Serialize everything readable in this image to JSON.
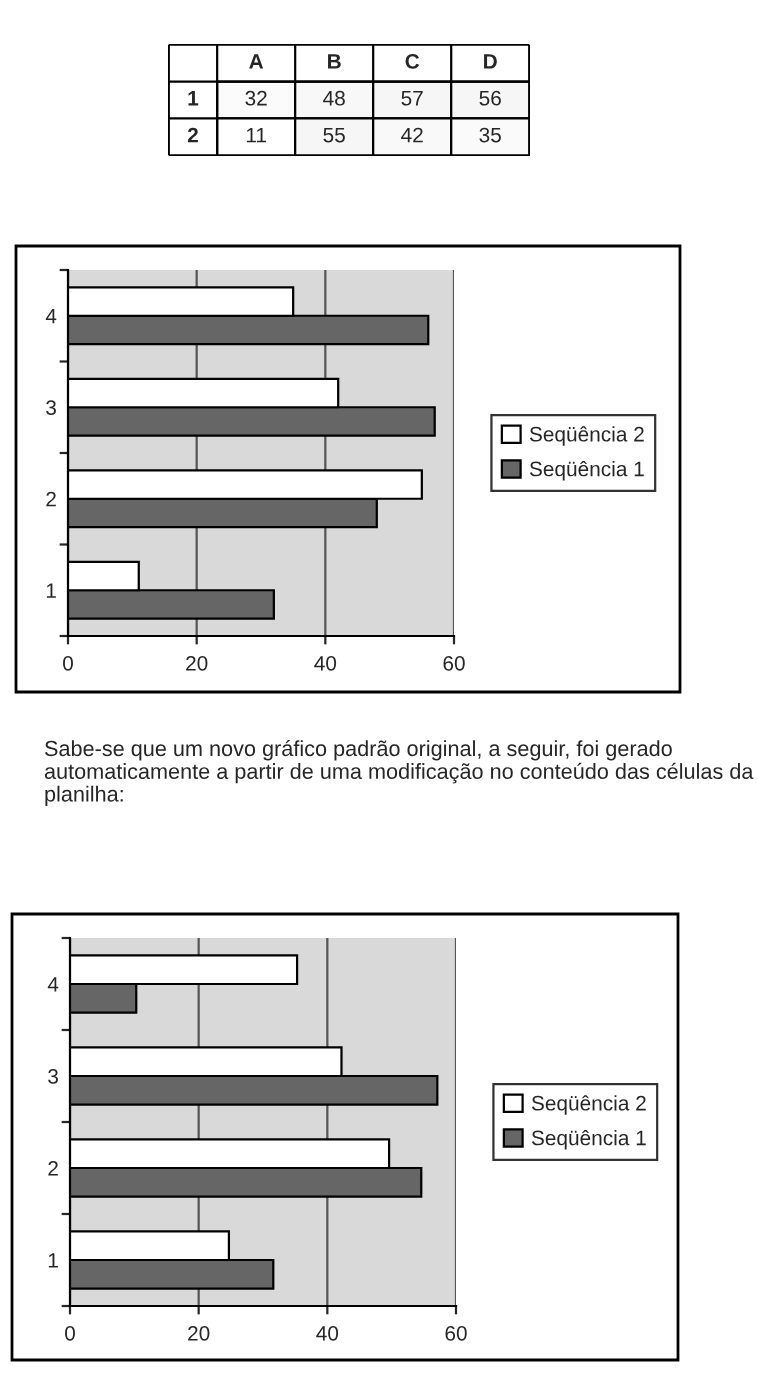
{
  "chart_data": [
    {
      "type": "heatmap",
      "categories": [
        "A",
        "B",
        "C",
        "D"
      ],
      "y_categories": [
        "1",
        "2"
      ],
      "cells": [
        [
          32,
          48,
          57,
          56
        ],
        [
          11,
          55,
          42,
          35
        ]
      ],
      "cell_labels": [
        [
          "32",
          "48",
          "57",
          "56"
        ],
        [
          "11",
          "55",
          "42",
          "35"
        ]
      ]
    },
    {
      "type": "bar",
      "orientation": "horizontal",
      "categories": [
        "4",
        "3",
        "2",
        "1"
      ],
      "series": [
        {
          "name": "Seqüência 1",
          "color": "#666666",
          "values": [
            56,
            57,
            48,
            32
          ]
        },
        {
          "name": "Seqüência 2",
          "color": "#ffffff",
          "values": [
            35,
            42,
            55,
            11
          ]
        }
      ],
      "xlim": [
        0,
        60
      ],
      "xticks": [
        0,
        20,
        40,
        60
      ],
      "grid": "x",
      "legend": "right"
    },
    {
      "type": "bar",
      "orientation": "horizontal",
      "categories": [
        "4",
        "3",
        "2",
        "1"
      ],
      "series": [
        {
          "name": "Seqüência 1",
          "color": "#666666",
          "values": [
            10.3,
            57.1,
            54.6,
            31.6
          ]
        },
        {
          "name": "Seqüência 2",
          "color": "#ffffff",
          "values": [
            35.3,
            42.2,
            49.6,
            24.7
          ]
        }
      ],
      "xlim": [
        0,
        60
      ],
      "xticks": [
        0,
        20,
        40,
        60
      ],
      "grid": "x",
      "legend": "right",
      "annotations": [
        "Sabe-se que um novo gráfico padrão original, a seguir, foi gerado automaticamente a partir de uma modificação no conteúdo das células da planilha:"
      ]
    }
  ]
}
